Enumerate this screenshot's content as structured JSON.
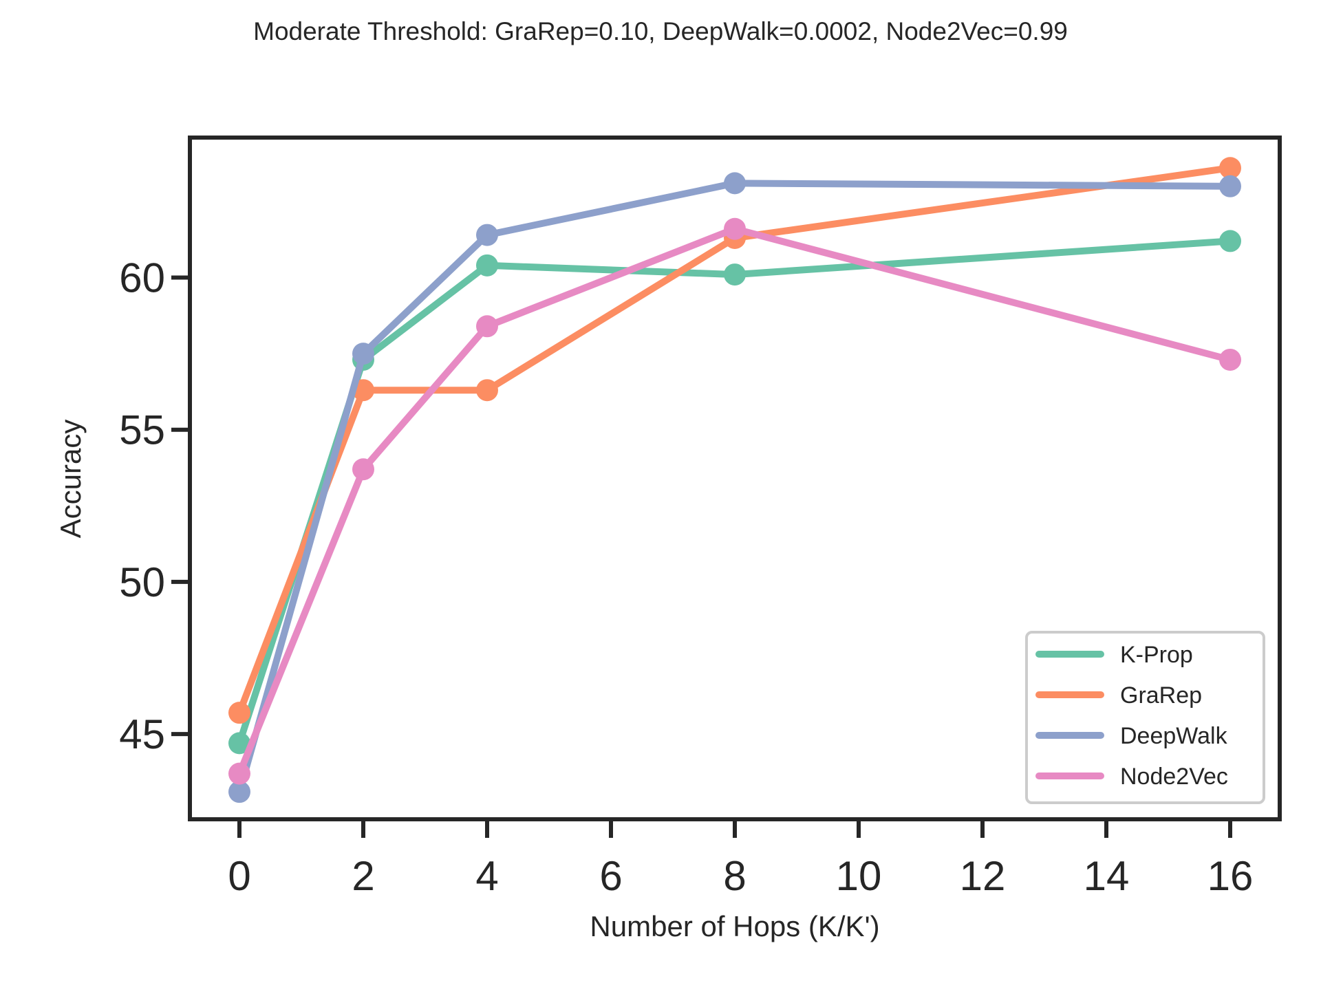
{
  "chart_data": {
    "type": "line",
    "title": "Moderate Threshold: GraRep=0.10, DeepWalk=0.0002, Node2Vec=0.99",
    "xlabel": "Number of Hops (K/K')",
    "ylabel": "Accuracy",
    "x": [
      0,
      2,
      4,
      8,
      16
    ],
    "xticks": [
      0,
      2,
      4,
      6,
      8,
      10,
      12,
      14,
      16
    ],
    "yticks": [
      45,
      50,
      55,
      60
    ],
    "xlim": [
      -0.8,
      16.8
    ],
    "ylim": [
      42.2,
      64.6
    ],
    "grid": false,
    "legend_position": "lower right",
    "series": [
      {
        "name": "K-Prop",
        "color": "#66c2a5",
        "values": [
          44.7,
          57.3,
          60.4,
          60.1,
          61.2
        ]
      },
      {
        "name": "GraRep",
        "color": "#fc8d62",
        "values": [
          45.7,
          56.3,
          56.3,
          61.3,
          63.6
        ]
      },
      {
        "name": "DeepWalk",
        "color": "#8da0cb",
        "values": [
          43.1,
          57.5,
          61.4,
          63.1,
          63.0
        ]
      },
      {
        "name": "Node2Vec",
        "color": "#e78ac3",
        "values": [
          43.7,
          53.7,
          58.4,
          61.6,
          57.3
        ]
      }
    ]
  }
}
